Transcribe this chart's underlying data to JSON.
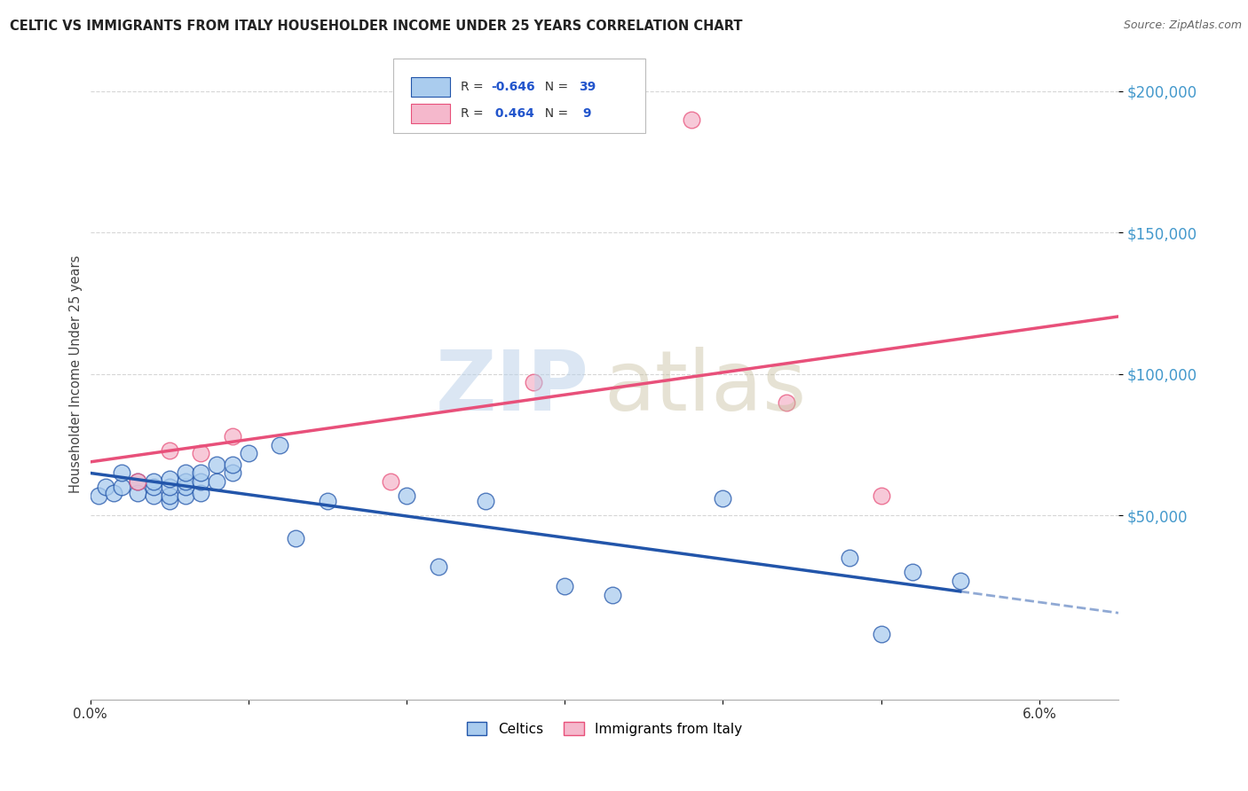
{
  "title": "CELTIC VS IMMIGRANTS FROM ITALY HOUSEHOLDER INCOME UNDER 25 YEARS CORRELATION CHART",
  "source": "Source: ZipAtlas.com",
  "ylabel": "Householder Income Under 25 years",
  "legend_celtic": "Celtics",
  "legend_italy": "Immigrants from Italy",
  "r_celtic": -0.646,
  "n_celtic": 39,
  "r_italy": 0.464,
  "n_italy": 9,
  "ytick_labels": [
    "$50,000",
    "$100,000",
    "$150,000",
    "$200,000"
  ],
  "ytick_values": [
    50000,
    100000,
    150000,
    200000
  ],
  "ymax": 215000,
  "ymin": -15000,
  "xmin": 0.0,
  "xmax": 0.065,
  "celtic_color": "#aaccee",
  "italy_color": "#f5b8cc",
  "celtic_line_color": "#2255aa",
  "italy_line_color": "#e8507a",
  "ytick_color": "#4499cc",
  "background_color": "#ffffff",
  "celtics_x": [
    0.0005,
    0.001,
    0.0015,
    0.002,
    0.002,
    0.003,
    0.003,
    0.004,
    0.004,
    0.004,
    0.005,
    0.005,
    0.005,
    0.005,
    0.006,
    0.006,
    0.006,
    0.006,
    0.007,
    0.007,
    0.007,
    0.008,
    0.008,
    0.009,
    0.009,
    0.01,
    0.012,
    0.013,
    0.015,
    0.02,
    0.022,
    0.025,
    0.03,
    0.033,
    0.04,
    0.048,
    0.05,
    0.052,
    0.055
  ],
  "celtics_y": [
    57000,
    60000,
    58000,
    60000,
    65000,
    58000,
    62000,
    57000,
    60000,
    62000,
    55000,
    57000,
    60000,
    63000,
    57000,
    60000,
    62000,
    65000,
    58000,
    62000,
    65000,
    62000,
    68000,
    65000,
    68000,
    72000,
    75000,
    42000,
    55000,
    57000,
    32000,
    55000,
    25000,
    22000,
    56000,
    35000,
    8000,
    30000,
    27000
  ],
  "italy_x": [
    0.003,
    0.005,
    0.007,
    0.009,
    0.019,
    0.028,
    0.038,
    0.044,
    0.05
  ],
  "italy_y": [
    62000,
    73000,
    72000,
    78000,
    62000,
    97000,
    190000,
    90000,
    57000
  ]
}
